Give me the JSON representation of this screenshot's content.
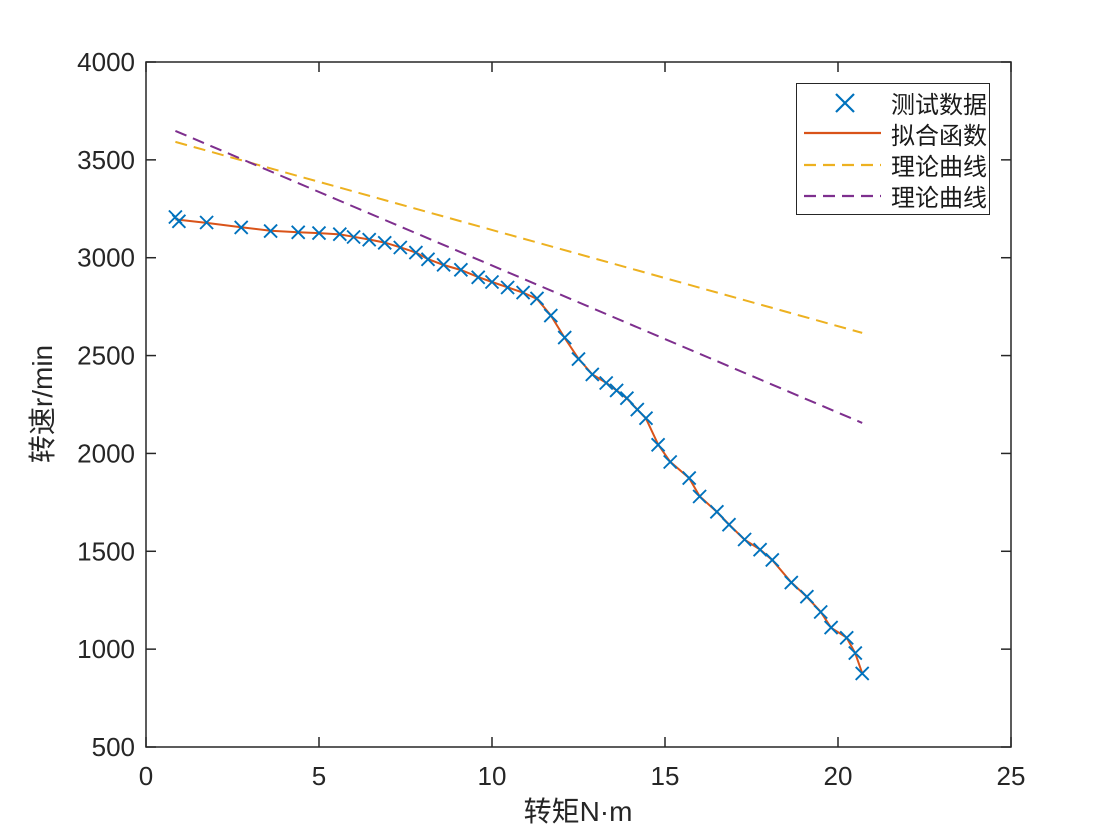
{
  "figure": {
    "background": "#ffffff",
    "axis_color": "#262626"
  },
  "chart_data": {
    "type": "scatter",
    "title": "",
    "xlabel": "转矩N·m",
    "ylabel": "转速r/min",
    "xlim": [
      0,
      25
    ],
    "ylim": [
      500,
      4000
    ],
    "x_ticks": [
      0,
      5,
      10,
      15,
      20,
      25
    ],
    "y_ticks": [
      500,
      1000,
      1500,
      2000,
      2500,
      3000,
      3500,
      4000
    ],
    "grid": false,
    "legend_position": "top-right",
    "series": [
      {
        "name": "测试数据",
        "type": "scatter",
        "marker": "x",
        "color": "#0072BD",
        "x": [
          0.85,
          0.95,
          1.75,
          2.75,
          3.6,
          4.4,
          5.0,
          5.6,
          6.0,
          6.45,
          6.9,
          7.35,
          7.8,
          8.15,
          8.6,
          9.1,
          9.6,
          10.0,
          10.45,
          10.9,
          11.3,
          11.7,
          12.1,
          12.5,
          12.9,
          13.3,
          13.6,
          13.9,
          14.2,
          14.45,
          14.8,
          15.15,
          15.7,
          16.0,
          16.5,
          16.85,
          17.3,
          17.75,
          18.1,
          18.65,
          19.1,
          19.5,
          19.8,
          20.25,
          20.5,
          20.7
        ],
        "y": [
          3208,
          3186,
          3180,
          3155,
          3136,
          3130,
          3126,
          3120,
          3106,
          3092,
          3076,
          3052,
          3026,
          2992,
          2964,
          2938,
          2900,
          2876,
          2848,
          2822,
          2792,
          2704,
          2592,
          2482,
          2404,
          2360,
          2322,
          2282,
          2224,
          2180,
          2044,
          1956,
          1874,
          1780,
          1702,
          1636,
          1560,
          1508,
          1456,
          1340,
          1268,
          1190,
          1110,
          1058,
          980,
          876
        ]
      },
      {
        "name": "拟合函数",
        "type": "line",
        "style": "solid",
        "color": "#D95319",
        "x": [
          0.85,
          1.75,
          2.75,
          3.6,
          4.4,
          5.0,
          5.6,
          6.0,
          6.45,
          6.9,
          7.35,
          7.8,
          8.15,
          8.6,
          9.1,
          9.6,
          10.0,
          10.45,
          10.9,
          11.3,
          11.7,
          12.1,
          12.5,
          12.9,
          13.3,
          13.6,
          13.9,
          14.2,
          14.45,
          14.8,
          15.15,
          15.7,
          16.0,
          16.5,
          16.85,
          17.3,
          17.75,
          18.1,
          18.65,
          19.1,
          19.5,
          19.8,
          20.25,
          20.5,
          20.7
        ],
        "y": [
          3196,
          3178,
          3156,
          3138,
          3130,
          3126,
          3119,
          3107,
          3093,
          3077,
          3053,
          3026,
          2993,
          2963,
          2937,
          2901,
          2876,
          2849,
          2821,
          2790,
          2706,
          2590,
          2484,
          2404,
          2361,
          2322,
          2281,
          2225,
          2178,
          2046,
          1957,
          1874,
          1781,
          1701,
          1637,
          1559,
          1509,
          1455,
          1341,
          1267,
          1191,
          1109,
          1059,
          978,
          877
        ]
      },
      {
        "name": "理论曲线",
        "type": "line",
        "style": "dashed",
        "color": "#EDB120",
        "x": [
          0.85,
          20.7
        ],
        "y": [
          3592,
          2616
        ]
      },
      {
        "name": "理论曲线",
        "type": "line",
        "style": "dashed",
        "color": "#7E2F8E",
        "x": [
          0.85,
          20.7
        ],
        "y": [
          3648,
          2156
        ]
      }
    ]
  },
  "legend": {
    "items": [
      {
        "label": "测试数据"
      },
      {
        "label": "拟合函数"
      },
      {
        "label": "理论曲线"
      },
      {
        "label": "理论曲线"
      }
    ]
  }
}
